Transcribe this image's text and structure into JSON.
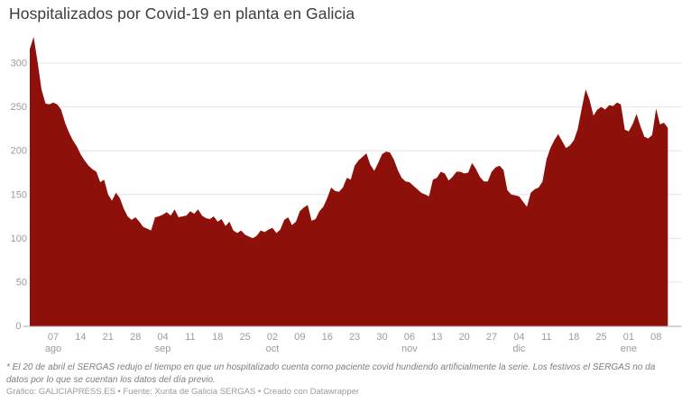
{
  "title": "Hospitalizados por Covid-19 en planta en Galicia",
  "footnote": "* El 20 de abril el SERGAS redujo el tiempo en que un hospitalizado cuenta como paciente covid hundiendo artificialmente la serie. Los festivos el SERGAS no da datos por lo que se cuentan los datos del día previo.",
  "credit": "Gráfico: GALICIAPRESS.ES • Fuente: Xunta de Galicia SERGAS • Creado con Datawrapper",
  "chart_data": {
    "type": "area",
    "title": "Hospitalizados por Covid-19 en planta en Galicia",
    "series_name": "Hospitalizados en planta",
    "x_start": "2021-08-01",
    "x_end": "2022-01-11",
    "x_frequency": "daily",
    "values": [
      316,
      330,
      301,
      270,
      254,
      253,
      255,
      253,
      247,
      232,
      221,
      212,
      205,
      196,
      189,
      183,
      179,
      176,
      164,
      167,
      150,
      143,
      152,
      146,
      134,
      125,
      121,
      124,
      119,
      113,
      111,
      109,
      124,
      125,
      127,
      130,
      126,
      133,
      124,
      125,
      126,
      131,
      128,
      133,
      126,
      123,
      122,
      125,
      119,
      122,
      114,
      119,
      109,
      106,
      109,
      104,
      102,
      100,
      103,
      109,
      107,
      110,
      112,
      106,
      110,
      121,
      124,
      115,
      119,
      131,
      135,
      138,
      120,
      122,
      131,
      136,
      146,
      158,
      154,
      153,
      158,
      169,
      167,
      183,
      189,
      193,
      197,
      184,
      177,
      186,
      196,
      199,
      198,
      190,
      178,
      169,
      165,
      164,
      160,
      156,
      152,
      150,
      148,
      167,
      169,
      176,
      174,
      166,
      170,
      176,
      176,
      174,
      175,
      186,
      179,
      170,
      165,
      165,
      176,
      181,
      183,
      178,
      155,
      150,
      149,
      148,
      142,
      136,
      152,
      156,
      158,
      165,
      190,
      203,
      212,
      219,
      211,
      203,
      206,
      212,
      225,
      248,
      270,
      258,
      240,
      247,
      250,
      247,
      252,
      251,
      255,
      253,
      224,
      222,
      230,
      242,
      228,
      216,
      214,
      218,
      248,
      230,
      232,
      226
    ],
    "y_ticks": [
      0,
      50,
      100,
      150,
      200,
      250,
      300
    ],
    "ylim": [
      0,
      340
    ],
    "x_ticks": [
      {
        "index": 6,
        "label": "07",
        "month": "ago"
      },
      {
        "index": 13,
        "label": "14"
      },
      {
        "index": 20,
        "label": "21"
      },
      {
        "index": 27,
        "label": "28"
      },
      {
        "index": 34,
        "label": "04",
        "month": "sep"
      },
      {
        "index": 41,
        "label": "11"
      },
      {
        "index": 48,
        "label": "18"
      },
      {
        "index": 55,
        "label": "25"
      },
      {
        "index": 62,
        "label": "02",
        "month": "oct"
      },
      {
        "index": 69,
        "label": "09"
      },
      {
        "index": 76,
        "label": "16"
      },
      {
        "index": 83,
        "label": "23"
      },
      {
        "index": 90,
        "label": "30"
      },
      {
        "index": 97,
        "label": "06",
        "month": "nov"
      },
      {
        "index": 104,
        "label": "13"
      },
      {
        "index": 111,
        "label": "20"
      },
      {
        "index": 118,
        "label": "27"
      },
      {
        "index": 125,
        "label": "04",
        "month": "dic"
      },
      {
        "index": 132,
        "label": "11"
      },
      {
        "index": 139,
        "label": "18"
      },
      {
        "index": 146,
        "label": "25"
      },
      {
        "index": 153,
        "label": "01",
        "month": "ene"
      },
      {
        "index": 160,
        "label": "08"
      }
    ],
    "grid": "horizontal",
    "legend": "none",
    "area_color": "#8e100b",
    "gridline_color": "#e4e4e4",
    "baseline_color": "#a8a8a8",
    "axis_label_color": "#9b9b9b"
  }
}
